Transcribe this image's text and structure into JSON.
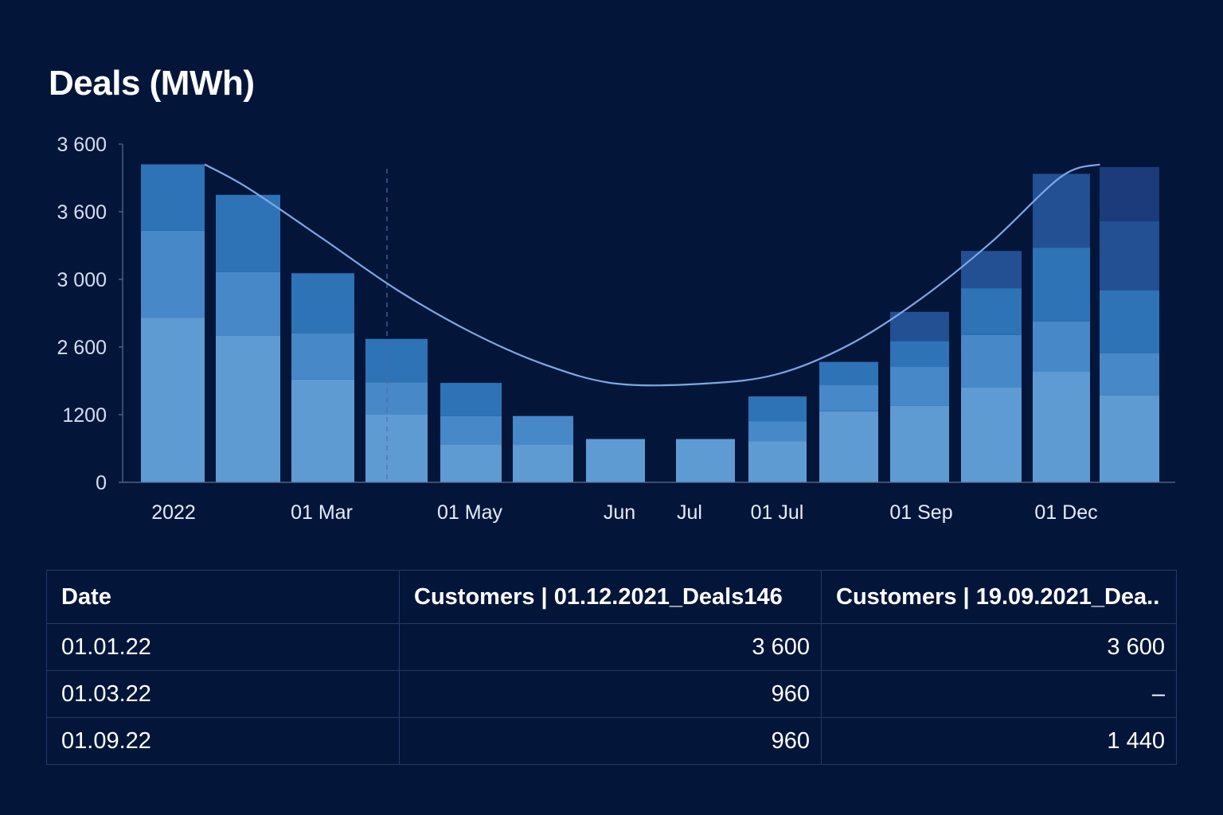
{
  "title": "Deals (MWh)",
  "colors": {
    "background": "#03163a",
    "line": "#7ea8e4",
    "axis": "#5a6f99",
    "segments": [
      "#5f9bd3",
      "#4688c8",
      "#2e73b6",
      "#234f93",
      "#1b3b7a"
    ]
  },
  "chart_data": {
    "type": "bar",
    "stacked": true,
    "title": "Deals (MWh)",
    "xlabel": "",
    "ylabel": "",
    "y_tick_labels": [
      "0",
      "1200",
      "2 600",
      "3 000",
      "3 600",
      "3 600"
    ],
    "x_tick_labels": [
      "2022",
      "01 Mar",
      "01 May",
      "Jun",
      "Jul",
      "01 Jul",
      "01 Sep",
      "01 Dec"
    ],
    "grid": false,
    "legend": "none",
    "bars": [
      {
        "segments": [
          2.43,
          1.29,
          0.98
        ]
      },
      {
        "segments": [
          2.17,
          0.94,
          1.14
        ]
      },
      {
        "segments": [
          1.52,
          0.68,
          0.89
        ]
      },
      {
        "segments": [
          1.0,
          0.48,
          0.64
        ]
      },
      {
        "segments": [
          0.56,
          0.42,
          0.49
        ]
      },
      {
        "segments": [
          0.56,
          0.42
        ]
      },
      {
        "segments": [
          0.64
        ]
      },
      {
        "segments": [
          0.64
        ]
      },
      {
        "segments": [
          0.61,
          0.29,
          0.37
        ]
      },
      {
        "segments": [
          1.05,
          0.39,
          0.34
        ]
      },
      {
        "segments": [
          1.13,
          0.58,
          0.38,
          0.43
        ]
      },
      {
        "segments": [
          1.4,
          0.78,
          0.69,
          0.55
        ]
      },
      {
        "segments": [
          1.64,
          0.74,
          1.09,
          1.09
        ]
      },
      {
        "segments": [
          1.29,
          0.62,
          0.93,
          1.02,
          0.8
        ]
      }
    ],
    "line": {
      "name": "",
      "values": [
        4.7,
        4.35,
        3.6,
        2.85,
        2.22,
        1.75,
        1.46,
        1.46,
        1.6,
        2.03,
        2.7,
        3.55,
        4.52,
        4.7
      ]
    }
  },
  "table": {
    "headers": [
      "Date",
      "Customers | 01.12.2021_Deals146",
      "Customers | 19.09.2021_Dea.."
    ],
    "rows": [
      [
        "01.01.22",
        "3 600",
        "3 600"
      ],
      [
        "01.03.22",
        "960",
        "–"
      ],
      [
        "01.09.22",
        "960",
        "1 440"
      ]
    ]
  }
}
